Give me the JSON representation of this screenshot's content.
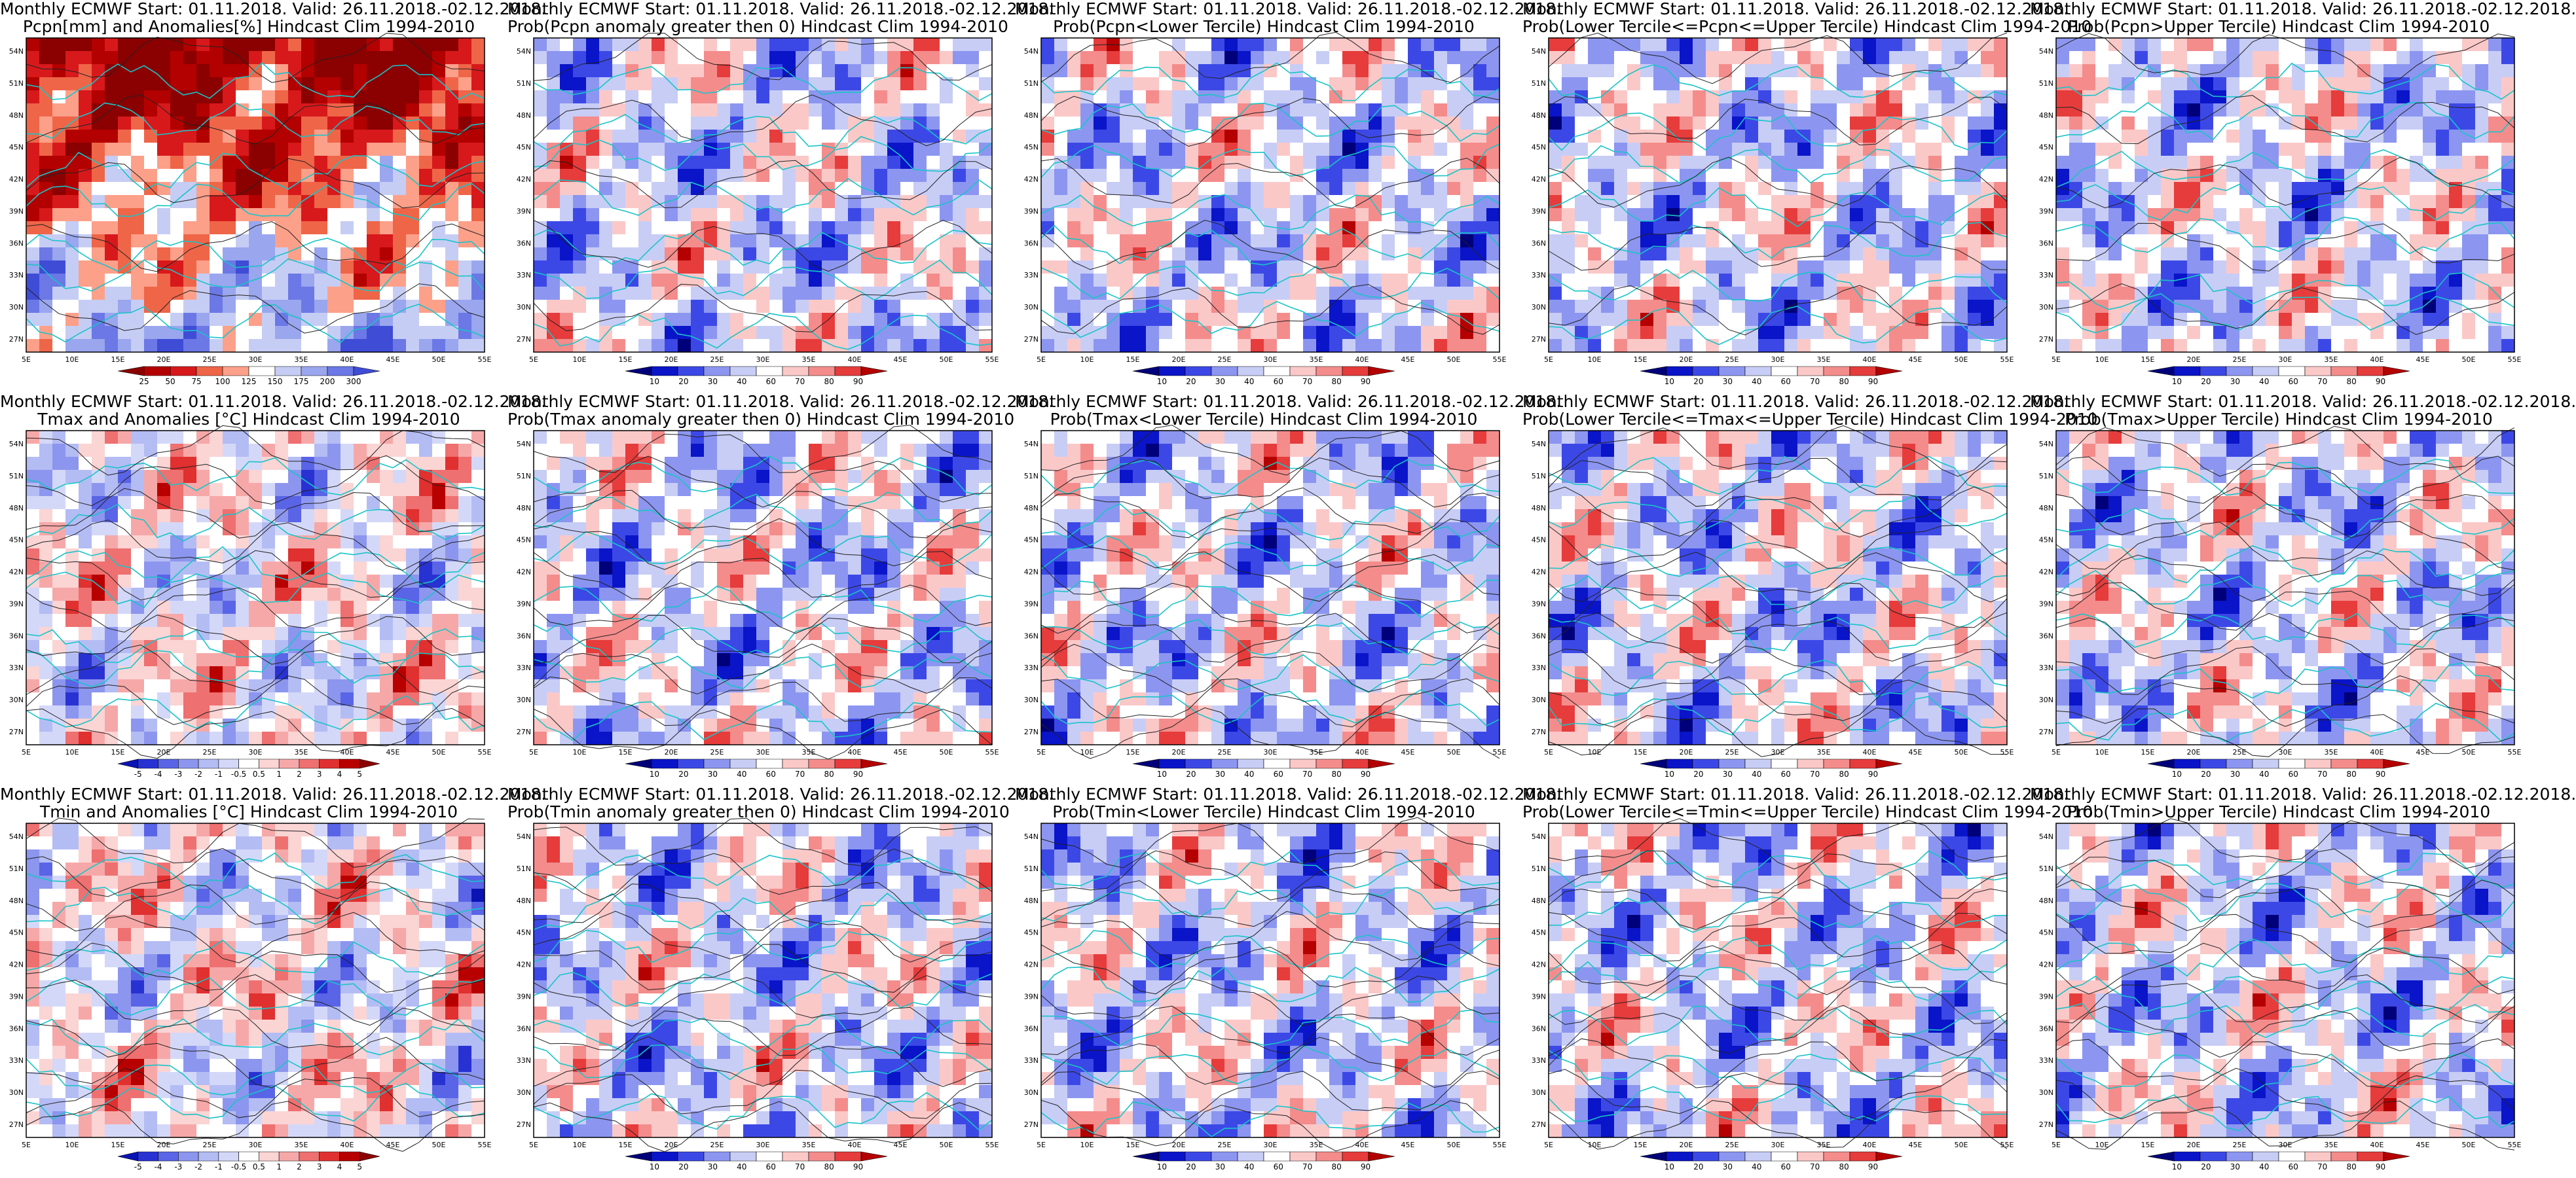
{
  "forecast": {
    "model": "Monthly ECMWF",
    "start": "01.11.2018.",
    "valid": "26.11.2018.-02.12.2018."
  },
  "panels": [
    {
      "id": "r1c1",
      "row": 0,
      "col": 0,
      "line1": "Monthly ECMWF Start: 01.11.2018. Valid: 26.11.2018.-02.12.2018.",
      "line2": "Pcpn[mm] and Anomalies[%] Hindcast Clim 1994-2010",
      "scheme": "pcp",
      "field": "pcp",
      "colorbar": [
        "25",
        "50",
        "75",
        "100",
        "125",
        "150",
        "175",
        "200",
        "300"
      ]
    },
    {
      "id": "r1c2",
      "row": 0,
      "col": 1,
      "line1": "Monthly ECMWF Start: 01.11.2018. Valid: 26.11.2018.-02.12.2018.",
      "line2": "Prob(Pcpn anomaly greater then 0) Hindcast Clim 1994-2010",
      "scheme": "prob",
      "field": "pcp",
      "colorbar": [
        "10",
        "20",
        "30",
        "40",
        "60",
        "70",
        "80",
        "90"
      ]
    },
    {
      "id": "r1c3",
      "row": 0,
      "col": 2,
      "line1": "Monthly ECMWF Start: 01.11.2018. Valid: 26.11.2018.-02.12.2018.",
      "line2": "Prob(Pcpn<Lower Tercile) Hindcast Clim 1994-2010",
      "scheme": "prob",
      "field": "pcp",
      "colorbar": [
        "10",
        "20",
        "30",
        "40",
        "60",
        "70",
        "80",
        "90"
      ]
    },
    {
      "id": "r1c4",
      "row": 0,
      "col": 3,
      "line1": "Monthly ECMWF Start: 01.11.2018. Valid: 26.11.2018.-02.12.2018.",
      "line2": "Prob(Lower Tercile<=Pcpn<=Upper Tercile) Hindcast Clim 1994-2010",
      "scheme": "prob",
      "field": "pcp",
      "colorbar": [
        "10",
        "20",
        "30",
        "40",
        "60",
        "70",
        "80",
        "90"
      ]
    },
    {
      "id": "r1c5",
      "row": 0,
      "col": 4,
      "line1": "Monthly ECMWF Start: 01.11.2018. Valid: 26.11.2018.-02.12.2018.",
      "line2": "Prob(Pcpn>Upper Tercile) Hindcast Clim 1994-2010",
      "scheme": "prob",
      "field": "pcp",
      "colorbar": [
        "10",
        "20",
        "30",
        "40",
        "60",
        "70",
        "80",
        "90"
      ]
    },
    {
      "id": "r2c1",
      "row": 1,
      "col": 0,
      "line1": "Monthly ECMWF Start: 01.11.2018. Valid: 26.11.2018.-02.12.2018.",
      "line2": "Tmax and Anomalies [°C] Hindcast Clim 1994-2010",
      "scheme": "anom",
      "field": "temp",
      "colorbar": [
        "-5",
        "-4",
        "-3",
        "-2",
        "-1",
        "-0.5",
        "0.5",
        "1",
        "2",
        "3",
        "4",
        "5"
      ]
    },
    {
      "id": "r2c2",
      "row": 1,
      "col": 1,
      "line1": "Monthly ECMWF Start: 01.11.2018. Valid: 26.11.2018.-02.12.2018.",
      "line2": "Prob(Tmax anomaly greater then 0) Hindcast Clim 1994-2010",
      "scheme": "prob",
      "field": "temp",
      "colorbar": [
        "10",
        "20",
        "30",
        "40",
        "60",
        "70",
        "80",
        "90"
      ]
    },
    {
      "id": "r2c3",
      "row": 1,
      "col": 2,
      "line1": "Monthly ECMWF Start: 01.11.2018. Valid: 26.11.2018.-02.12.2018.",
      "line2": "Prob(Tmax<Lower Tercile) Hindcast Clim 1994-2010",
      "scheme": "prob",
      "field": "temp",
      "colorbar": [
        "10",
        "20",
        "30",
        "40",
        "60",
        "70",
        "80",
        "90"
      ]
    },
    {
      "id": "r2c4",
      "row": 1,
      "col": 3,
      "line1": "Monthly ECMWF Start: 01.11.2018. Valid: 26.11.2018.-02.12.2018.",
      "line2": "Prob(Lower Tercile<=Tmax<=Upper Tercile) Hindcast Clim 1994-2010",
      "scheme": "prob",
      "field": "temp",
      "colorbar": [
        "10",
        "20",
        "30",
        "40",
        "60",
        "70",
        "80",
        "90"
      ]
    },
    {
      "id": "r2c5",
      "row": 1,
      "col": 4,
      "line1": "Monthly ECMWF Start: 01.11.2018. Valid: 26.11.2018.-02.12.2018.",
      "line2": "Prob(Tmax>Upper Tercile) Hindcast Clim 1994-2010",
      "scheme": "prob",
      "field": "temp",
      "colorbar": [
        "10",
        "20",
        "30",
        "40",
        "60",
        "70",
        "80",
        "90"
      ]
    },
    {
      "id": "r3c1",
      "row": 2,
      "col": 0,
      "line1": "Monthly ECMWF Start: 01.11.2018. Valid: 26.11.2018.-02.12.2018.",
      "line2": "Tmin and Anomalies [°C] Hindcast Clim 1994-2010",
      "scheme": "anom",
      "field": "temp",
      "colorbar": [
        "-5",
        "-4",
        "-3",
        "-2",
        "-1",
        "-0.5",
        "0.5",
        "1",
        "2",
        "3",
        "4",
        "5"
      ]
    },
    {
      "id": "r3c2",
      "row": 2,
      "col": 1,
      "line1": "Monthly ECMWF Start: 01.11.2018. Valid: 26.11.2018.-02.12.2018.",
      "line2": "Prob(Tmin anomaly greater then 0) Hindcast Clim 1994-2010",
      "scheme": "prob",
      "field": "temp",
      "colorbar": [
        "10",
        "20",
        "30",
        "40",
        "60",
        "70",
        "80",
        "90"
      ]
    },
    {
      "id": "r3c3",
      "row": 2,
      "col": 2,
      "line1": "Monthly ECMWF Start: 01.11.2018. Valid: 26.11.2018.-02.12.2018.",
      "line2": "Prob(Tmin<Lower Tercile) Hindcast Clim 1994-2010",
      "scheme": "prob",
      "field": "temp",
      "colorbar": [
        "10",
        "20",
        "30",
        "40",
        "60",
        "70",
        "80",
        "90"
      ]
    },
    {
      "id": "r3c4",
      "row": 2,
      "col": 3,
      "line1": "Monthly ECMWF Start: 01.11.2018. Valid: 26.11.2018.-02.12.2018.",
      "line2": "Prob(Lower Tercile<=Tmin<=Upper Tercile) Hindcast Clim 1994-2010",
      "scheme": "prob",
      "field": "temp",
      "colorbar": [
        "10",
        "20",
        "30",
        "40",
        "60",
        "70",
        "80",
        "90"
      ]
    },
    {
      "id": "r3c5",
      "row": 2,
      "col": 4,
      "line1": "Monthly ECMWF Start: 01.11.2018. Valid: 26.11.2018.-02.12.2018.",
      "line2": "Prob(Tmin>Upper Tercile) Hindcast Clim 1994-2010",
      "scheme": "prob",
      "field": "temp",
      "colorbar": [
        "10",
        "20",
        "30",
        "40",
        "60",
        "70",
        "80",
        "90"
      ]
    }
  ],
  "axes": {
    "lon": [
      "5E",
      "10E",
      "15E",
      "20E",
      "25E",
      "30E",
      "35E",
      "40E",
      "45E",
      "50E",
      "55E"
    ],
    "lat": [
      "27N",
      "30N",
      "33N",
      "36N",
      "39N",
      "42N",
      "45N",
      "48N",
      "51N",
      "54N"
    ]
  },
  "colors": {
    "pcp": [
      "#8b0000",
      "#b30000",
      "#d7191c",
      "#ef6548",
      "#fca08a",
      "#ffffff",
      "#c6cdf4",
      "#9aa6ee",
      "#6b78e5",
      "#3f4cd6"
    ],
    "prob": [
      "#00007a",
      "#0a14c8",
      "#3c48e6",
      "#8c96f0",
      "#c8cdf6",
      "#ffffff",
      "#fbc8c8",
      "#f48c8c",
      "#e63c3c",
      "#b40000"
    ],
    "anom": [
      "#0a14b4",
      "#2832d2",
      "#5a64e6",
      "#8c96ee",
      "#b4bcf4",
      "#d4d8f8",
      "#ffffff",
      "#fbd4d4",
      "#f6a8a8",
      "#ee7070",
      "#e03030",
      "#b80000",
      "#8c0000"
    ],
    "coast": "#19c4c8",
    "contour": "#222222"
  }
}
